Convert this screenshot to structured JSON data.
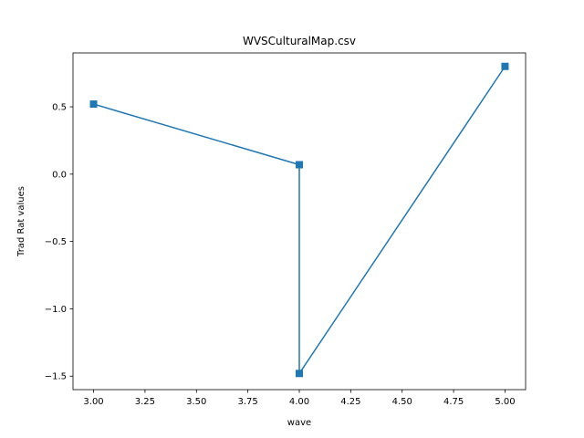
{
  "chart_data": {
    "type": "line",
    "title": "WVSCulturalMap.csv",
    "xlabel": "wave",
    "ylabel": "Trad Rat values",
    "xlim": [
      2.9,
      5.1
    ],
    "ylim": [
      -1.6,
      0.9
    ],
    "xticks": [
      3.0,
      3.25,
      3.5,
      3.75,
      4.0,
      4.25,
      4.5,
      4.75,
      5.0
    ],
    "xtick_labels": [
      "3.00",
      "3.25",
      "3.50",
      "3.75",
      "4.00",
      "4.25",
      "4.50",
      "4.75",
      "5.00"
    ],
    "yticks": [
      -1.5,
      -1.0,
      -0.5,
      0.0,
      0.5
    ],
    "ytick_labels": [
      "−1.5",
      "−1.0",
      "−0.5",
      "0.0",
      "0.5"
    ],
    "grid": false,
    "series": [
      {
        "color": "#1f77b4",
        "marker": "square",
        "x": [
          3,
          4,
          4,
          5
        ],
        "y": [
          0.52,
          0.07,
          -1.48,
          0.8
        ]
      }
    ]
  }
}
